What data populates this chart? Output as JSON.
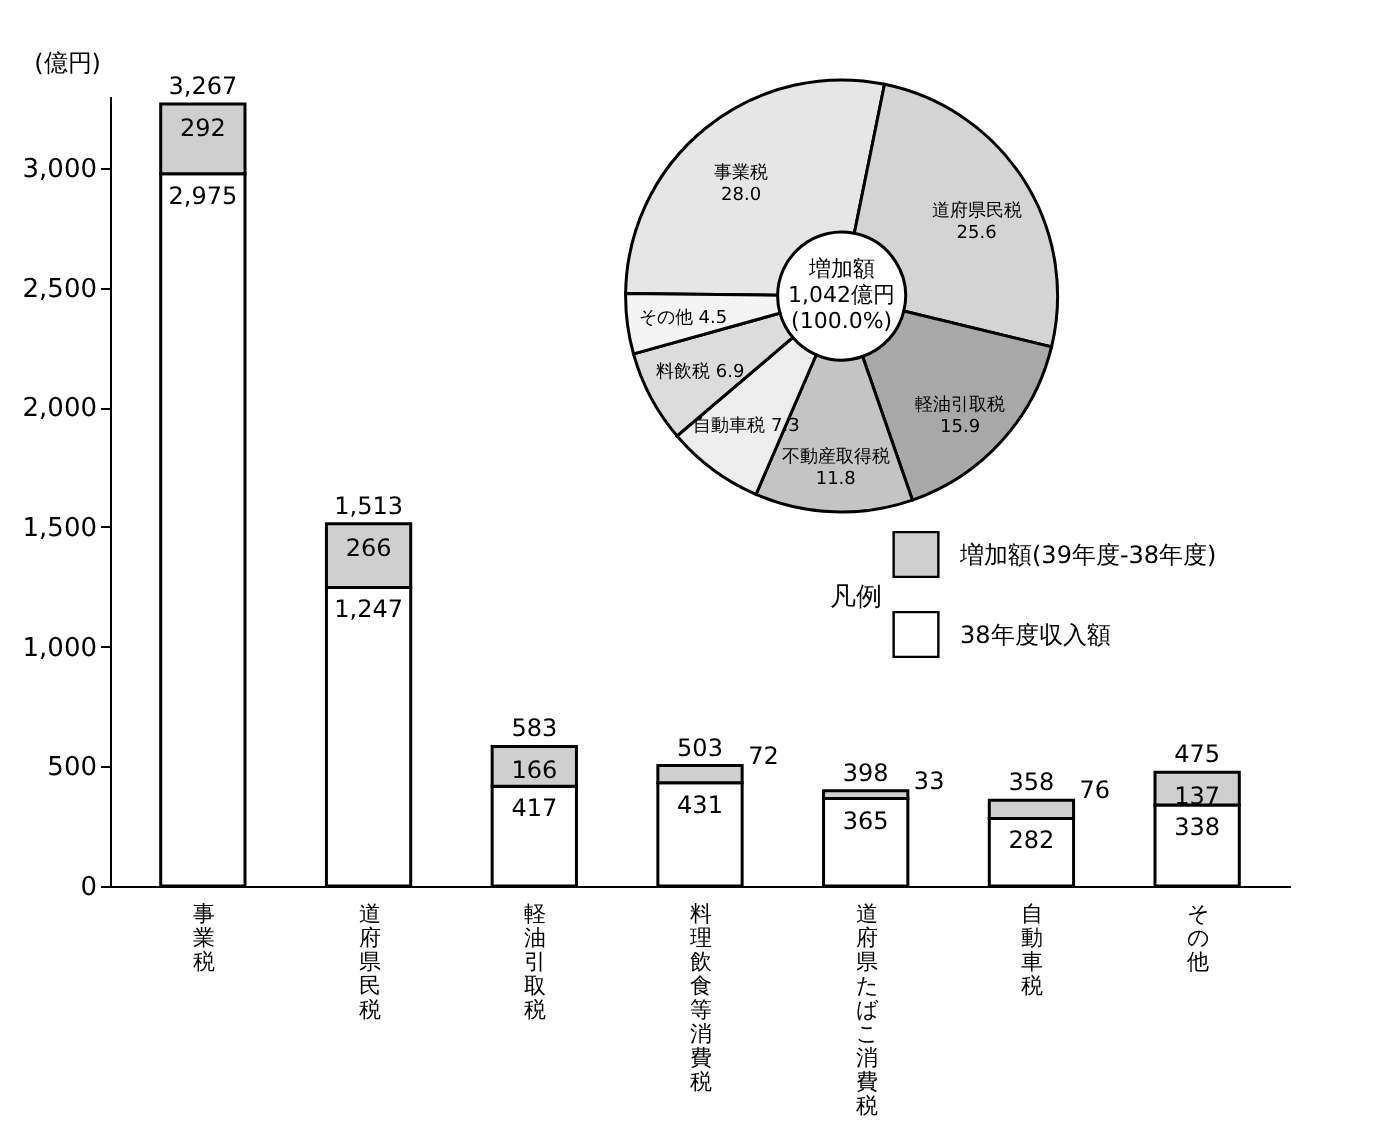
{
  "chart_data": [
    {
      "type": "bar",
      "stacked": true,
      "ylabel": "(億円)",
      "legend_title": "凡例",
      "legend": "right",
      "grid": false,
      "categories": [
        "事業税",
        "道府県民税",
        "軽油引取税",
        "料理飲食等消費税",
        "道府県たばこ消費税",
        "自動車税",
        "その他"
      ],
      "ylim": [
        0,
        3300
      ],
      "yticks": [
        0,
        500,
        {
          "value": 1000,
          "label": "1,000"
        },
        {
          "value": 1500,
          "label": "1,500"
        },
        {
          "value": 2000,
          "label": "2,000"
        },
        {
          "value": 2500,
          "label": "2,500"
        },
        {
          "value": 3000,
          "label": "3,000"
        }
      ],
      "series": [
        {
          "name": "38年度収入額",
          "color": "#ffffff",
          "values": [
            2975,
            1247,
            417,
            431,
            365,
            282,
            338
          ],
          "value_labels": [
            "2,975",
            "1,247",
            "417",
            "431",
            "365",
            "282",
            "338"
          ]
        },
        {
          "name": "増加額(39年度-38年度)",
          "color": "#cfcfcf",
          "values": [
            292,
            266,
            166,
            72,
            33,
            76,
            137
          ],
          "value_labels": [
            "292",
            "266",
            "166",
            "72",
            "33",
            "76",
            "137"
          ]
        }
      ],
      "totals": [
        "3,267",
        "1,513",
        "583",
        "503",
        "398",
        "358",
        "475"
      ]
    },
    {
      "type": "donut",
      "legend": false,
      "annotations": [
        "増加額",
        "1,042億円",
        "(100.0%)"
      ],
      "categories": [
        "事業税",
        "道府県民税",
        "軽油引取税",
        "不動産取得税",
        "自動車税",
        "料飲税",
        "その他"
      ],
      "values": [
        28.0,
        25.6,
        15.9,
        11.8,
        7.3,
        6.9,
        4.5
      ],
      "value_labels": [
        "28.0",
        "25.6",
        "15.9",
        "11.8",
        "7.3",
        "6.9",
        "4.5"
      ],
      "colors": [
        "#e6e6e6",
        "#d4d4d4",
        "#a8a8a8",
        "#c4c4c4",
        "#ededed",
        "#dcdcdc",
        "#f4f4f4"
      ]
    }
  ]
}
